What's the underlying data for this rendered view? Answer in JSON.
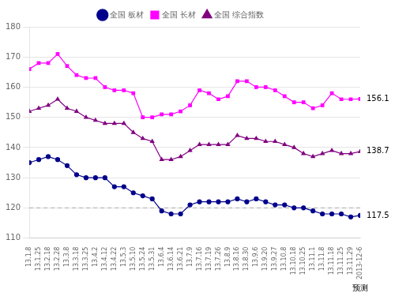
{
  "chart_data": {
    "type": "line",
    "categories": [
      "13.1.8",
      "13.1.25",
      "13.2.18",
      "13.2.28",
      "13.3.8",
      "13.3.18",
      "13.3.25",
      "13.4.2",
      "13.4.12",
      "13.4.22",
      "13.5.3",
      "13.5.10",
      "13.5.24",
      "13.5.31",
      "13.6.4",
      "13.6.14",
      "13.6.21",
      "13.7.9",
      "13.7.16",
      "13.7.19",
      "13.7.26",
      "13.8.9",
      "13.8.16",
      "13.8.30",
      "13.9.6",
      "13.9.20",
      "13.9.27",
      "13.10.8",
      "13.10.18",
      "13.10.25",
      "13.11.1",
      "13.11.8",
      "13.11.18",
      "13.11.25",
      "13.11.29",
      "2013-12-6"
    ],
    "series": [
      {
        "name": "全国 板材",
        "color": "#00008B",
        "marker": "circle",
        "values": [
          135,
          136,
          137,
          136,
          134,
          131,
          130,
          130,
          130,
          127,
          127,
          125,
          124,
          123,
          119,
          118,
          118,
          121,
          122,
          122,
          122,
          122,
          123,
          122,
          123,
          122,
          121,
          121,
          120,
          120,
          119,
          118,
          118,
          118,
          117,
          117.5
        ]
      },
      {
        "name": "全国 长材",
        "color": "#FF00FF",
        "marker": "square",
        "values": [
          166,
          168,
          168,
          171,
          167,
          164,
          163,
          163,
          160,
          159,
          159,
          158,
          150,
          150,
          151,
          151,
          152,
          154,
          159,
          158,
          156,
          157,
          162,
          162,
          160,
          160,
          159,
          157,
          155,
          155,
          153,
          154,
          158,
          156,
          156,
          156.1
        ]
      },
      {
        "name": "全国 综合指数",
        "color": "#800080",
        "marker": "triangle",
        "values": [
          152,
          153,
          154,
          156,
          153,
          152,
          150,
          149,
          148,
          148,
          148,
          145,
          143,
          142,
          136,
          136,
          137,
          139,
          141,
          141,
          141,
          141,
          144,
          143,
          143,
          142,
          142,
          141,
          140,
          138,
          137,
          138,
          139,
          138,
          138,
          138.7
        ]
      }
    ],
    "annotations": [
      {
        "text": "156.1",
        "y": 156.1
      },
      {
        "text": "138.7",
        "y": 138.7
      },
      {
        "text": "117.5",
        "y": 117.5
      },
      {
        "text": "预测",
        "x": "2013-12-6"
      }
    ],
    "reference_line": 120,
    "ylim": [
      110,
      180
    ],
    "yticks": [
      110,
      120,
      130,
      140,
      150,
      160,
      170,
      180
    ],
    "grid": true,
    "legend": "top"
  }
}
